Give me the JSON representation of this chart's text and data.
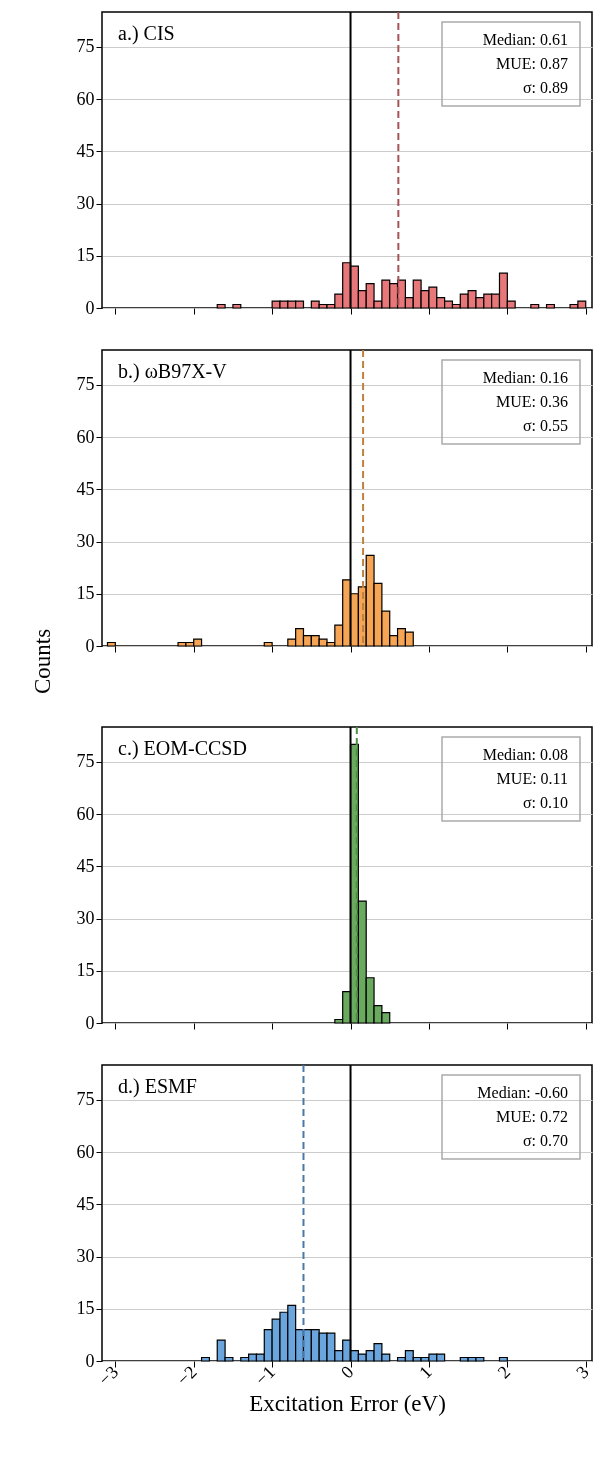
{
  "chart_data": [
    {
      "type": "histogram",
      "title": "a.) CIS",
      "color": "#e8777a",
      "bins": [
        -1.7,
        -1.6,
        -1.5,
        -1.4,
        -1.3,
        -1.2,
        -1.1,
        -1.0,
        -0.9,
        -0.8,
        -0.7,
        -0.6,
        -0.5,
        -0.4,
        -0.3,
        -0.2,
        -0.1,
        0,
        0.1,
        0.2,
        0.3,
        0.4,
        0.5,
        0.6,
        0.7,
        0.8,
        0.9,
        1.0,
        1.1,
        1.2,
        1.3,
        1.4,
        1.5,
        1.6,
        1.7,
        1.8,
        1.9,
        2.0,
        2.1,
        2.2,
        2.3,
        2.4,
        2.5,
        2.6,
        2.7,
        2.8,
        2.9,
        3.0
      ],
      "values": [
        1,
        0,
        1,
        0,
        0,
        0,
        0,
        2,
        2,
        2,
        2,
        0,
        2,
        1,
        1,
        4,
        13,
        12,
        5,
        7,
        2,
        8,
        7,
        8,
        3,
        8,
        5,
        6,
        3,
        2,
        1,
        4,
        5,
        3,
        4,
        4,
        10,
        2,
        0,
        0,
        1,
        0,
        1,
        0,
        0,
        1,
        2
      ],
      "xlim": [
        -3.17,
        3.08
      ],
      "xticks": [
        -3,
        -2,
        -1,
        0,
        1,
        2,
        3
      ],
      "ylim": [
        0,
        85
      ],
      "yticks": [
        0,
        15,
        30,
        45,
        60,
        75
      ],
      "grid": "y",
      "tick_labels": "y",
      "ref_lines": [
        {
          "axis": "x",
          "value": 0,
          "color": "#000000",
          "line_style": "solid"
        },
        {
          "axis": "x",
          "value": 0.61,
          "color": "#a65457",
          "line_style": "dashed"
        }
      ],
      "annotations": [
        "Median: 0.61",
        "MUE: 0.87",
        "σ: 0.89"
      ]
    },
    {
      "type": "histogram",
      "title": "b.) ωB97X-V",
      "color": "#f5a553",
      "ylabel": "Counts",
      "bins": [
        -3.1,
        -3.0,
        -2.9,
        -2.8,
        -2.7,
        -2.6,
        -2.5,
        -2.4,
        -2.3,
        -2.2,
        -2.1,
        -2.0,
        -1.9,
        -1.8,
        -1.7,
        -1.6,
        -1.5,
        -1.4,
        -1.3,
        -1.2,
        -1.1,
        -1.0,
        -0.9,
        -0.8,
        -0.7,
        -0.6,
        -0.5,
        -0.4,
        -0.3,
        -0.2,
        -0.1,
        0,
        0.1,
        0.2,
        0.3,
        0.4,
        0.5,
        0.6,
        0.7,
        0.8
      ],
      "values": [
        1,
        0,
        0,
        0,
        0,
        0,
        0,
        0,
        0,
        1,
        1,
        2,
        0,
        0,
        0,
        0,
        0,
        0,
        0,
        0,
        1,
        0,
        0,
        2,
        5,
        3,
        3,
        2,
        1,
        6,
        19,
        15,
        17,
        26,
        18,
        10,
        3,
        5,
        4
      ],
      "xlim": [
        -3.17,
        3.08
      ],
      "xticks": [
        -3,
        -2,
        -1,
        0,
        1,
        2,
        3
      ],
      "ylim": [
        0,
        85
      ],
      "yticks": [
        0,
        15,
        30,
        45,
        60,
        75
      ],
      "grid": "y",
      "tick_labels": "y",
      "ref_lines": [
        {
          "axis": "x",
          "value": 0,
          "color": "#000000",
          "line_style": "solid"
        },
        {
          "axis": "x",
          "value": 0.16,
          "color": "#c0813e",
          "line_style": "dashed"
        }
      ],
      "annotations": [
        "Median: 0.16",
        "MUE: 0.36",
        "σ: 0.55"
      ]
    },
    {
      "type": "histogram",
      "title": "c.) EOM-CCSD",
      "color": "#6aaa5e",
      "bins": [
        -0.2,
        -0.1,
        0,
        0.1,
        0.2,
        0.3,
        0.4,
        0.5
      ],
      "values": [
        1,
        9,
        80,
        35,
        13,
        5,
        3
      ],
      "xlim": [
        -3.17,
        3.08
      ],
      "xticks": [
        -3,
        -2,
        -1,
        0,
        1,
        2,
        3
      ],
      "ylim": [
        0,
        85
      ],
      "yticks": [
        0,
        15,
        30,
        45,
        60,
        75
      ],
      "grid": "y",
      "tick_labels": "y",
      "ref_lines": [
        {
          "axis": "x",
          "value": 0,
          "color": "#000000",
          "line_style": "solid"
        },
        {
          "axis": "x",
          "value": 0.08,
          "color": "#4f8f45",
          "line_style": "dashed"
        }
      ],
      "annotations": [
        "Median: 0.08",
        "MUE: 0.11",
        "σ: 0.10"
      ]
    },
    {
      "type": "histogram",
      "title": "d.) ESMF",
      "color": "#6aa5dd",
      "xlabel": "Excitation Error (eV)",
      "bins": [
        -1.9,
        -1.8,
        -1.7,
        -1.6,
        -1.5,
        -1.4,
        -1.3,
        -1.2,
        -1.1,
        -1.0,
        -0.9,
        -0.8,
        -0.7,
        -0.6,
        -0.5,
        -0.4,
        -0.3,
        -0.2,
        -0.1,
        0,
        0.1,
        0.2,
        0.3,
        0.4,
        0.5,
        0.6,
        0.7,
        0.8,
        0.9,
        1.0,
        1.1,
        1.2,
        1.3,
        1.4,
        1.5,
        1.6,
        1.7,
        1.8,
        1.9,
        2.0
      ],
      "values": [
        1,
        0,
        6,
        1,
        0,
        1,
        2,
        2,
        9,
        12,
        14,
        16,
        9,
        9,
        9,
        8,
        8,
        3,
        6,
        3,
        2,
        3,
        5,
        2,
        0,
        1,
        3,
        1,
        1,
        2,
        2,
        0,
        0,
        1,
        1,
        1,
        0,
        0,
        1
      ],
      "xlim": [
        -3.17,
        3.08
      ],
      "xticks": [
        -3,
        -2,
        -1,
        0,
        1,
        2,
        3
      ],
      "ylim": [
        0,
        85
      ],
      "yticks": [
        0,
        15,
        30,
        45,
        60,
        75
      ],
      "grid": "y",
      "ref_lines": [
        {
          "axis": "x",
          "value": 0,
          "color": "#000000",
          "line_style": "solid"
        },
        {
          "axis": "x",
          "value": -0.6,
          "color": "#4a79a6",
          "line_style": "dashed"
        }
      ],
      "annotations": [
        "Median: -0.60",
        "MUE: 0.72",
        "σ: 0.70"
      ]
    }
  ]
}
